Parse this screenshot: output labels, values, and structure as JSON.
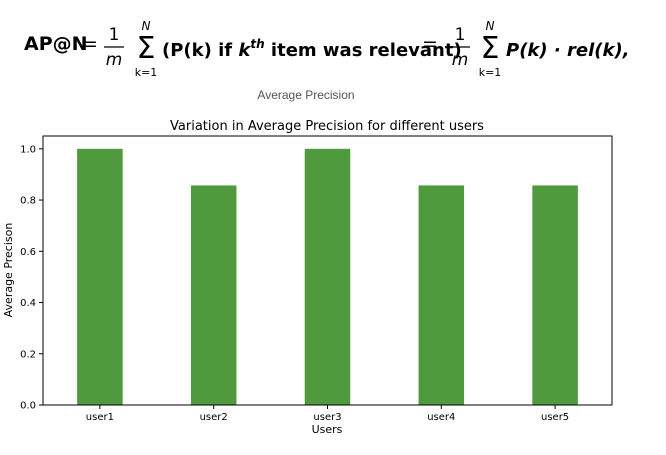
{
  "formula": {
    "lhs": "AP@N",
    "equals": "=",
    "frac_num": "1",
    "frac_den": "m",
    "sum_top": "N",
    "sum_bottom": "k=1",
    "sigma": "Σ",
    "term1_open": "(P(k) if ",
    "term1_k": "k",
    "term1_sup": "th",
    "term1_rest": " item was relevant)",
    "term2": "P(k) · rel(k),"
  },
  "caption": "Average Precision",
  "chart_data": {
    "type": "bar",
    "title": "Variation in Average Precision for different users",
    "xlabel": "Users",
    "ylabel": "Average Precison",
    "categories": [
      "user1",
      "user2",
      "user3",
      "user4",
      "user5"
    ],
    "values": [
      1.0,
      0.857,
      1.0,
      0.857,
      0.857
    ],
    "ylim": [
      0,
      1.05
    ],
    "yticks": [
      "0.0",
      "0.2",
      "0.4",
      "0.6",
      "0.8",
      "1.0"
    ],
    "ytick_values": [
      0,
      0.2,
      0.4,
      0.6,
      0.8,
      1.0
    ],
    "bar_color": "#4e9a3d",
    "grid": false
  }
}
